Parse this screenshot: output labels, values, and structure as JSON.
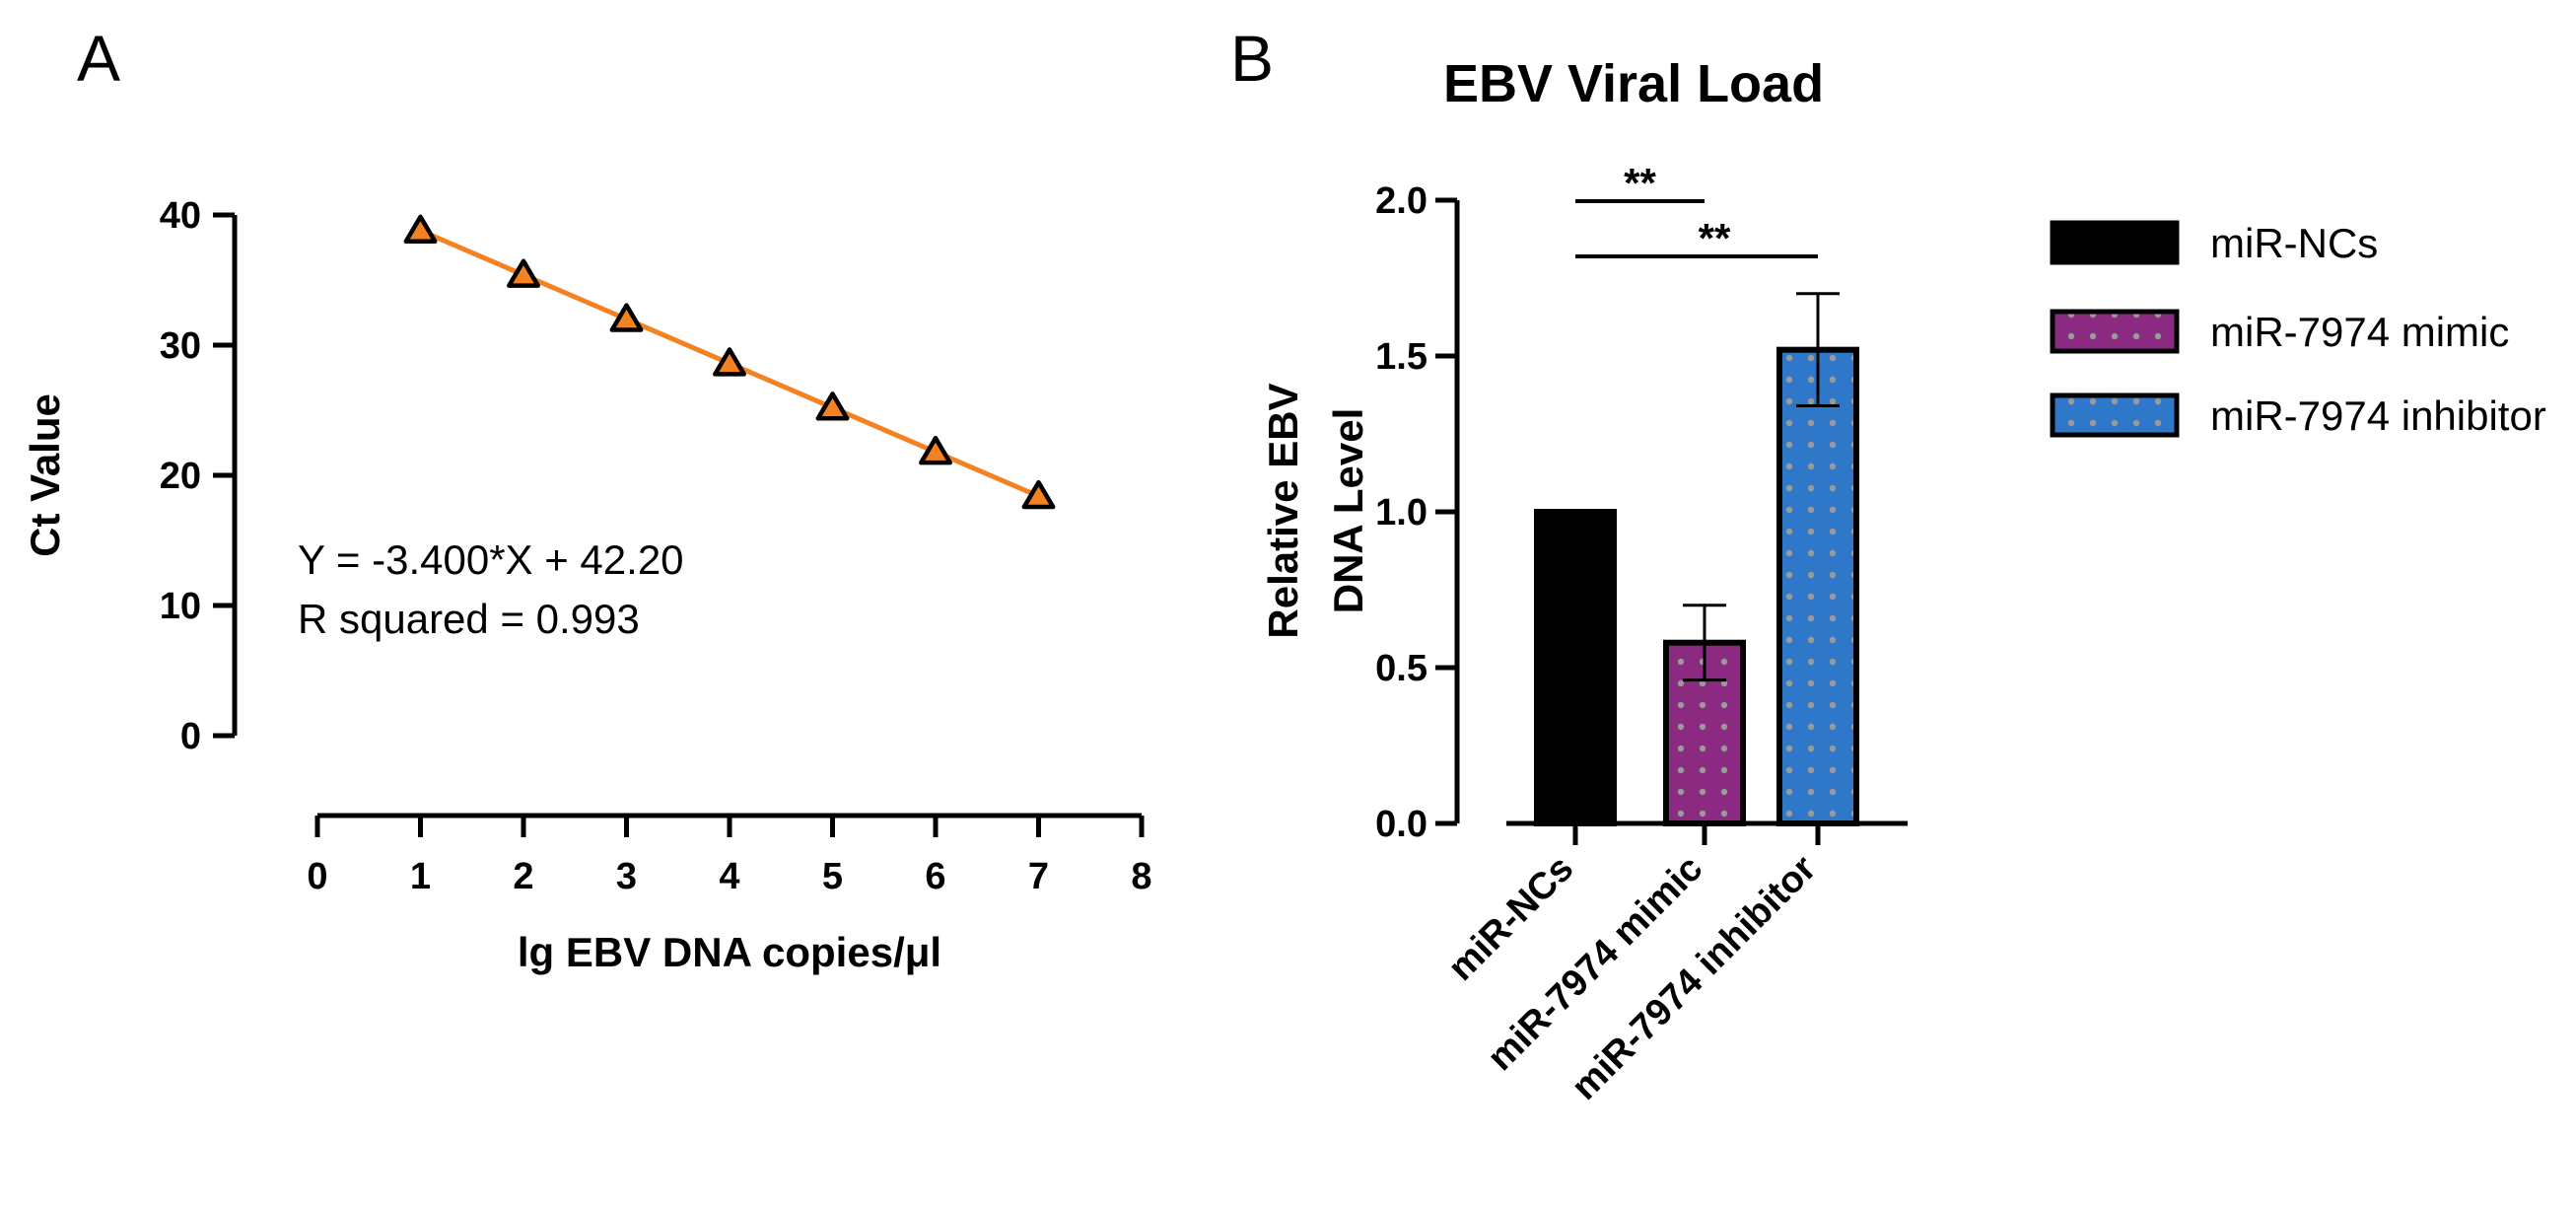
{
  "panels": {
    "a": {
      "letter": "A"
    },
    "b": {
      "letter": "B"
    }
  },
  "chart_data": [
    {
      "type": "scatter",
      "panel": "A",
      "title": "",
      "xlabel": "lg EBV DNA copies/μl",
      "ylabel": "Ct Value",
      "xlim": [
        0,
        8
      ],
      "ylim": [
        0,
        40
      ],
      "xticks": [
        "0",
        "1",
        "2",
        "3",
        "4",
        "5",
        "6",
        "7",
        "8"
      ],
      "yticks": [
        "0",
        "10",
        "20",
        "30",
        "40"
      ],
      "x": [
        1,
        2,
        3,
        4,
        5,
        6,
        7
      ],
      "y": [
        38.8,
        35.4,
        32.0,
        28.6,
        25.2,
        21.8,
        18.4
      ],
      "fit": {
        "slope": -3.4,
        "intercept": 42.2,
        "x_range": [
          1,
          7
        ]
      },
      "annotations": [
        "Y = -3.400*X + 42.20",
        "R squared = 0.993"
      ],
      "colors": {
        "marker": "#f58220",
        "line": "#f58220",
        "marker_edge": "#000000"
      },
      "grid": false
    },
    {
      "type": "bar",
      "panel": "B",
      "title": "EBV Viral Load",
      "xlabel": "",
      "ylabel": [
        "Relative EBV",
        "DNA Level"
      ],
      "ylim": [
        0,
        2
      ],
      "yticks": [
        "0.0",
        "0.5",
        "1.0",
        "1.5",
        "2.0"
      ],
      "categories": [
        "miR-NCs",
        "miR-7974 mimic",
        "miR-7974 inhibitor"
      ],
      "values": [
        1.0,
        0.58,
        1.52
      ],
      "errors": [
        0,
        0.12,
        0.18
      ],
      "colors": [
        "#000000",
        "#8b2a80",
        "#2f77c8"
      ],
      "pattern_dot_color": "#9a9a9a",
      "significance": [
        {
          "from": 0,
          "to": 1,
          "label": "**"
        },
        {
          "from": 0,
          "to": 2,
          "label": "**"
        }
      ],
      "legend": {
        "position": "right",
        "entries": [
          "miR-NCs",
          "miR-7974 mimic",
          "miR-7974 inhibitor"
        ]
      },
      "grid": false
    }
  ]
}
